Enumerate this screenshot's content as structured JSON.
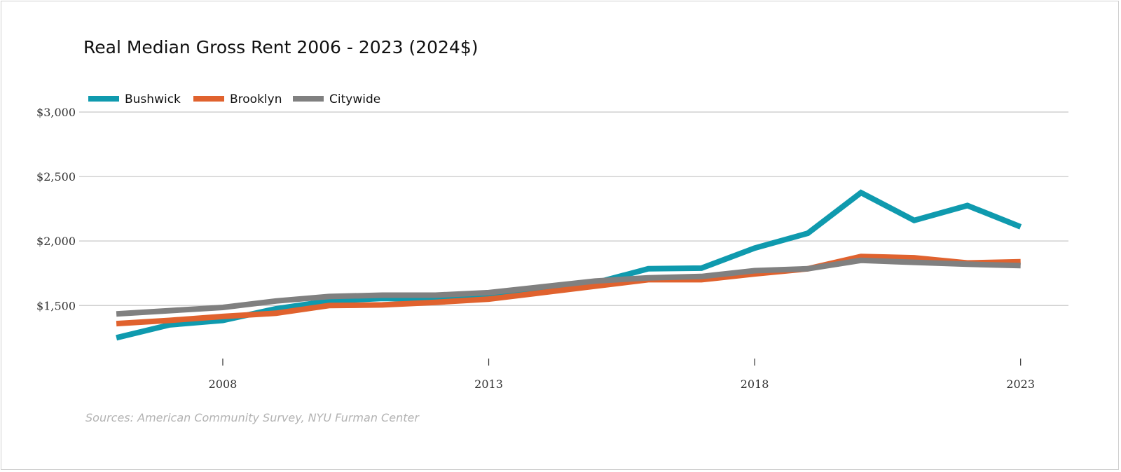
{
  "chart_data": {
    "type": "line",
    "title": "Real Median Gross Rent 2006 - 2023 (2024$)",
    "source": "Sources: American Community Survey, NYU Furman Center",
    "x": [
      2006,
      2007,
      2008,
      2009,
      2010,
      2011,
      2012,
      2013,
      2014,
      2015,
      2016,
      2017,
      2018,
      2019,
      2020,
      2021,
      2022,
      2023
    ],
    "x_ticks": [
      2008,
      2013,
      2018,
      2023
    ],
    "x_tick_labels": [
      "2008",
      "2013",
      "2018",
      "2023"
    ],
    "xlim": [
      2005.3,
      2023.9
    ],
    "y_ticks": [
      1500,
      2000,
      2500,
      3000
    ],
    "y_tick_labels": [
      "$1,500",
      "$2,000",
      "$2,500",
      "$3,000"
    ],
    "ylim": [
      1040,
      3000
    ],
    "grid": true,
    "legend_position": "top-left",
    "series": [
      {
        "name": "Bushwick",
        "color": "#0f9aae",
        "values": [
          1250,
          1350,
          1385,
          1475,
          1535,
          1555,
          1550,
          1585,
          1625,
          1675,
          1785,
          1790,
          1945,
          2060,
          2375,
          2160,
          2275,
          2110
        ]
      },
      {
        "name": "Brooklyn",
        "color": "#e0622e",
        "values": [
          1360,
          1385,
          1415,
          1440,
          1500,
          1505,
          1525,
          1550,
          1600,
          1650,
          1700,
          1700,
          1745,
          1785,
          1880,
          1870,
          1830,
          1840
        ]
      },
      {
        "name": "Citywide",
        "color": "#808080",
        "values": [
          1435,
          1460,
          1485,
          1535,
          1570,
          1580,
          1580,
          1600,
          1645,
          1690,
          1715,
          1725,
          1770,
          1785,
          1850,
          1835,
          1820,
          1810
        ]
      }
    ]
  }
}
